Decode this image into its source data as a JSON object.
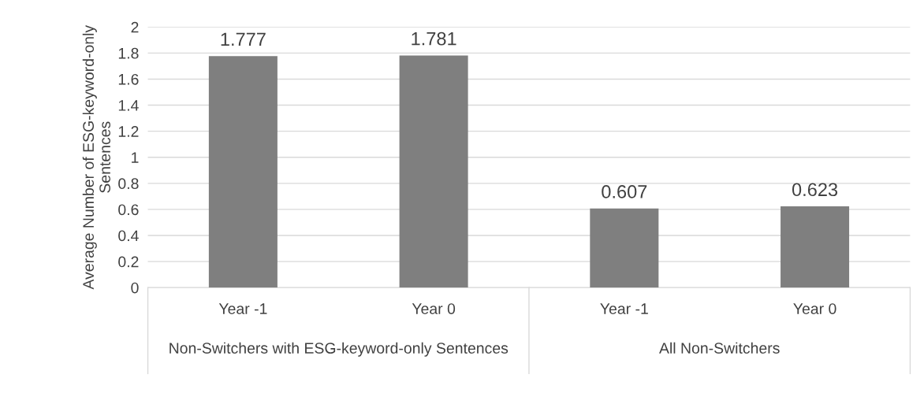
{
  "chart_data": {
    "type": "bar",
    "ylabel": "Average Number of ESG-keyword-only Sentences",
    "categories": [
      "Year -1",
      "Year 0",
      "Year -1",
      "Year 0"
    ],
    "values": [
      1.777,
      1.781,
      0.607,
      0.623
    ],
    "color": "#7f7f7f",
    "data_labels": true,
    "ylim": [
      0,
      2
    ],
    "yticks": [
      0,
      0.2,
      0.4,
      0.6,
      0.8,
      1,
      1.2,
      1.4,
      1.6,
      1.8,
      2
    ],
    "grid": "y",
    "annotations": [
      "Non-Switchers with ESG-keyword-only Sentences",
      "All Non-Switchers"
    ]
  }
}
